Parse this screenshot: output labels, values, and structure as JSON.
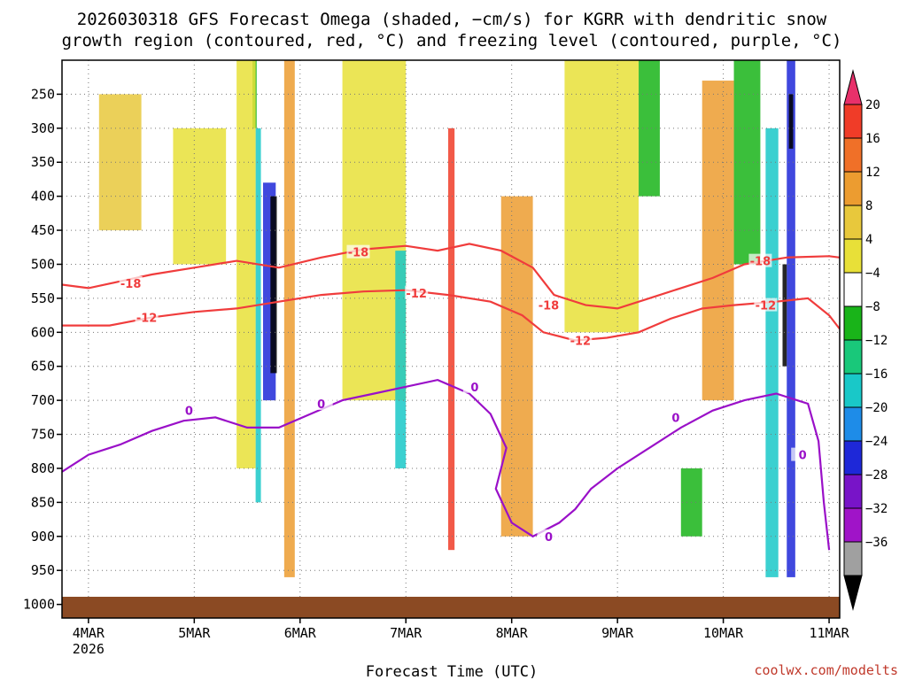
{
  "chart_data": {
    "type": "heatmap",
    "title_line1": "2026030318 GFS Forecast Omega (shaded, −cm/s) for KGRR with dendritic snow",
    "title_line2": "growth region (contoured, red, °C) and freezing level (contoured, purple, °C)",
    "xlabel": "Forecast Time (UTC)",
    "credit": "coolwx.com/modelts",
    "x_ticks": [
      {
        "label": "4MAR",
        "sub": "2026",
        "day": 0
      },
      {
        "label": "5MAR",
        "sub": "",
        "day": 1
      },
      {
        "label": "6MAR",
        "sub": "",
        "day": 2
      },
      {
        "label": "7MAR",
        "sub": "",
        "day": 3
      },
      {
        "label": "8MAR",
        "sub": "",
        "day": 4
      },
      {
        "label": "9MAR",
        "sub": "",
        "day": 5
      },
      {
        "label": "10MAR",
        "sub": "",
        "day": 6
      },
      {
        "label": "11MAR",
        "sub": "",
        "day": 7
      }
    ],
    "xlim_days": [
      -0.25,
      7.1
    ],
    "y_ticks": [
      250,
      300,
      350,
      400,
      450,
      500,
      550,
      600,
      650,
      700,
      750,
      800,
      850,
      900,
      950,
      1000
    ],
    "ylim_hpa": [
      200,
      1020
    ],
    "colorbar": {
      "labels": [
        "20",
        "16",
        "12",
        "8",
        "4",
        "−4",
        "−8",
        "−12",
        "−16",
        "−20",
        "−24",
        "−28",
        "−32",
        "−36"
      ],
      "colors": [
        "#e8306a",
        "#f03c28",
        "#f07028",
        "#ec9c30",
        "#e8c83c",
        "#e8e038",
        "#ffffff",
        "#19b419",
        "#19c87a",
        "#19c8c8",
        "#1e8ce8",
        "#1e28d8",
        "#7814c8",
        "#a014c8",
        "#a0a0a0",
        "#000000"
      ]
    },
    "ground_color": "#8b4a23",
    "series": [
      {
        "name": "dendritic -18C",
        "color": "#f03c3c",
        "label": "-18",
        "label_points": [
          [
            0.4,
            528
          ],
          [
            2.55,
            482
          ],
          [
            4.35,
            560
          ],
          [
            6.35,
            495
          ]
        ],
        "points": [
          [
            -0.25,
            530
          ],
          [
            0,
            535
          ],
          [
            0.3,
            525
          ],
          [
            0.6,
            515
          ],
          [
            1,
            505
          ],
          [
            1.4,
            495
          ],
          [
            1.8,
            505
          ],
          [
            2.2,
            490
          ],
          [
            2.6,
            478
          ],
          [
            3,
            473
          ],
          [
            3.3,
            480
          ],
          [
            3.6,
            470
          ],
          [
            3.9,
            480
          ],
          [
            4.2,
            505
          ],
          [
            4.4,
            545
          ],
          [
            4.7,
            560
          ],
          [
            5,
            565
          ],
          [
            5.3,
            550
          ],
          [
            5.6,
            535
          ],
          [
            5.9,
            520
          ],
          [
            6.2,
            500
          ],
          [
            6.6,
            490
          ],
          [
            7,
            488
          ],
          [
            7.1,
            490
          ]
        ]
      },
      {
        "name": "dendritic -12C",
        "color": "#f03c3c",
        "label": "-12",
        "label_points": [
          [
            0.55,
            578
          ],
          [
            3.1,
            542
          ],
          [
            4.65,
            612
          ],
          [
            6.4,
            560
          ]
        ],
        "points": [
          [
            -0.25,
            590
          ],
          [
            0.2,
            590
          ],
          [
            0.6,
            578
          ],
          [
            1,
            570
          ],
          [
            1.4,
            565
          ],
          [
            1.8,
            555
          ],
          [
            2.2,
            545
          ],
          [
            2.6,
            540
          ],
          [
            3,
            538
          ],
          [
            3.4,
            545
          ],
          [
            3.8,
            555
          ],
          [
            4.1,
            575
          ],
          [
            4.3,
            600
          ],
          [
            4.6,
            612
          ],
          [
            4.9,
            608
          ],
          [
            5.2,
            600
          ],
          [
            5.5,
            580
          ],
          [
            5.8,
            565
          ],
          [
            6.1,
            560
          ],
          [
            6.5,
            555
          ],
          [
            6.8,
            550
          ],
          [
            7,
            575
          ],
          [
            7.1,
            595
          ]
        ]
      },
      {
        "name": "freezing level 0C",
        "color": "#9a10c8",
        "label": "0",
        "label_points": [
          [
            0.95,
            715
          ],
          [
            2.2,
            705
          ],
          [
            3.65,
            680
          ],
          [
            4.35,
            900
          ],
          [
            5.55,
            725
          ],
          [
            6.75,
            780
          ]
        ],
        "points": [
          [
            -0.25,
            805
          ],
          [
            0,
            780
          ],
          [
            0.3,
            765
          ],
          [
            0.6,
            745
          ],
          [
            0.9,
            730
          ],
          [
            1.2,
            725
          ],
          [
            1.5,
            740
          ],
          [
            1.8,
            740
          ],
          [
            2.1,
            720
          ],
          [
            2.4,
            700
          ],
          [
            2.7,
            690
          ],
          [
            3,
            680
          ],
          [
            3.3,
            670
          ],
          [
            3.6,
            690
          ],
          [
            3.8,
            720
          ],
          [
            3.95,
            770
          ],
          [
            3.85,
            830
          ],
          [
            4,
            880
          ],
          [
            4.2,
            900
          ],
          [
            4.45,
            880
          ],
          [
            4.6,
            860
          ],
          [
            4.75,
            830
          ],
          [
            5,
            800
          ],
          [
            5.3,
            770
          ],
          [
            5.6,
            740
          ],
          [
            5.9,
            715
          ],
          [
            6.2,
            700
          ],
          [
            6.5,
            690
          ],
          [
            6.8,
            705
          ],
          [
            6.9,
            760
          ],
          [
            6.95,
            850
          ],
          [
            7,
            920
          ]
        ]
      }
    ],
    "shading": [
      {
        "x": 1.65,
        "w": 0.12,
        "p0": 380,
        "p1": 700,
        "color": "#1e28d8"
      },
      {
        "x": 1.72,
        "w": 0.06,
        "p0": 400,
        "p1": 660,
        "color": "#000000"
      },
      {
        "x": 1.58,
        "w": 0.05,
        "p0": 300,
        "p1": 850,
        "color": "#19c8c8"
      },
      {
        "x": 1.55,
        "w": 0.04,
        "p0": 200,
        "p1": 300,
        "color": "#19b419"
      },
      {
        "x": 1.85,
        "w": 0.1,
        "p0": 200,
        "p1": 960,
        "color": "#ec9c30"
      },
      {
        "x": 1.4,
        "w": 0.18,
        "p0": 200,
        "p1": 800,
        "color": "#e8e038"
      },
      {
        "x": 6.6,
        "w": 0.08,
        "p0": 200,
        "p1": 960,
        "color": "#1e28d8"
      },
      {
        "x": 6.62,
        "w": 0.04,
        "p0": 250,
        "p1": 330,
        "color": "#000000"
      },
      {
        "x": 6.56,
        "w": 0.04,
        "p0": 500,
        "p1": 650,
        "color": "#000000"
      },
      {
        "x": 6.4,
        "w": 0.12,
        "p0": 300,
        "p1": 960,
        "color": "#19c8c8"
      },
      {
        "x": 6.1,
        "w": 0.25,
        "p0": 200,
        "p1": 500,
        "color": "#19b419"
      },
      {
        "x": 5.8,
        "w": 0.3,
        "p0": 230,
        "p1": 700,
        "color": "#ec9c30"
      },
      {
        "x": 3.4,
        "w": 0.06,
        "p0": 300,
        "p1": 920,
        "color": "#f03c28"
      },
      {
        "x": 3.9,
        "w": 0.3,
        "p0": 400,
        "p1": 900,
        "color": "#ec9c30"
      },
      {
        "x": 0.8,
        "w": 0.5,
        "p0": 300,
        "p1": 500,
        "color": "#e8e038"
      },
      {
        "x": 2.4,
        "w": 0.6,
        "p0": 200,
        "p1": 700,
        "color": "#e8e038"
      },
      {
        "x": 2.9,
        "w": 0.1,
        "p0": 480,
        "p1": 800,
        "color": "#19c8c8"
      },
      {
        "x": 4.5,
        "w": 0.7,
        "p0": 200,
        "p1": 600,
        "color": "#e8e038"
      },
      {
        "x": 5.2,
        "w": 0.2,
        "p0": 200,
        "p1": 400,
        "color": "#19b419"
      },
      {
        "x": 5.6,
        "w": 0.2,
        "p0": 800,
        "p1": 900,
        "color": "#19b419"
      },
      {
        "x": 0.1,
        "w": 0.4,
        "p0": 250,
        "p1": 450,
        "color": "#e8c83c"
      }
    ]
  }
}
